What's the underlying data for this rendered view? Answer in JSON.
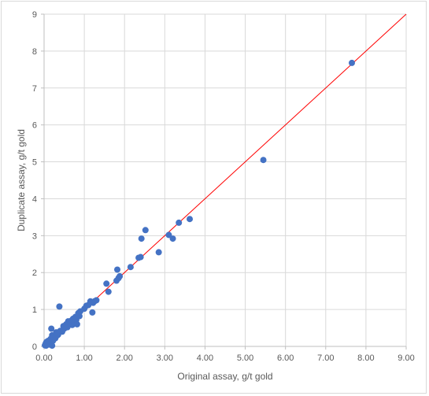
{
  "chart_data": {
    "type": "scatter",
    "title": "",
    "xlabel": "Original assay, g/t gold",
    "ylabel": "Duplicate assay, g/t gold",
    "xlim": [
      0,
      9
    ],
    "ylim": [
      0,
      9
    ],
    "x_ticks": [
      "0.00",
      "1.00",
      "2.00",
      "3.00",
      "4.00",
      "5.00",
      "6.00",
      "7.00",
      "8.00",
      "9.00"
    ],
    "y_ticks": [
      "0",
      "1",
      "2",
      "3",
      "4",
      "5",
      "6",
      "7",
      "8",
      "9"
    ],
    "grid": true,
    "legend": "none",
    "point_color": "#4472C4",
    "line_color": "#FF0000",
    "reference_line": {
      "x": [
        0,
        9
      ],
      "y": [
        0,
        9
      ]
    },
    "points": [
      [
        0.02,
        0.03
      ],
      [
        0.04,
        0.08
      ],
      [
        0.05,
        0.02
      ],
      [
        0.06,
        0.12
      ],
      [
        0.08,
        0.05
      ],
      [
        0.1,
        0.15
      ],
      [
        0.12,
        0.1
      ],
      [
        0.14,
        0.05
      ],
      [
        0.16,
        0.2
      ],
      [
        0.18,
        0.48
      ],
      [
        0.2,
        0.02
      ],
      [
        0.2,
        0.3
      ],
      [
        0.22,
        0.15
      ],
      [
        0.25,
        0.25
      ],
      [
        0.28,
        0.22
      ],
      [
        0.3,
        0.38
      ],
      [
        0.33,
        0.3
      ],
      [
        0.35,
        0.32
      ],
      [
        0.38,
        1.08
      ],
      [
        0.4,
        0.42
      ],
      [
        0.45,
        0.4
      ],
      [
        0.48,
        0.55
      ],
      [
        0.5,
        0.48
      ],
      [
        0.55,
        0.6
      ],
      [
        0.58,
        0.52
      ],
      [
        0.6,
        0.68
      ],
      [
        0.65,
        0.62
      ],
      [
        0.68,
        0.7
      ],
      [
        0.7,
        0.58
      ],
      [
        0.72,
        0.75
      ],
      [
        0.75,
        0.65
      ],
      [
        0.78,
        0.8
      ],
      [
        0.8,
        0.72
      ],
      [
        0.82,
        0.6
      ],
      [
        0.85,
        0.9
      ],
      [
        0.88,
        0.82
      ],
      [
        0.9,
        0.95
      ],
      [
        1.0,
        1.02
      ],
      [
        1.05,
        1.1
      ],
      [
        1.1,
        1.12
      ],
      [
        1.15,
        1.22
      ],
      [
        1.2,
        0.92
      ],
      [
        1.22,
        1.18
      ],
      [
        1.25,
        1.22
      ],
      [
        1.3,
        1.25
      ],
      [
        1.55,
        1.7
      ],
      [
        1.6,
        1.48
      ],
      [
        1.8,
        1.78
      ],
      [
        1.82,
        2.08
      ],
      [
        1.85,
        1.85
      ],
      [
        1.88,
        1.9
      ],
      [
        2.15,
        2.15
      ],
      [
        2.35,
        2.4
      ],
      [
        2.4,
        2.42
      ],
      [
        2.42,
        2.92
      ],
      [
        2.52,
        3.15
      ],
      [
        2.85,
        2.55
      ],
      [
        3.1,
        3.02
      ],
      [
        3.2,
        2.92
      ],
      [
        3.35,
        3.35
      ],
      [
        3.62,
        3.45
      ],
      [
        5.45,
        5.05
      ],
      [
        7.65,
        7.68
      ]
    ]
  }
}
